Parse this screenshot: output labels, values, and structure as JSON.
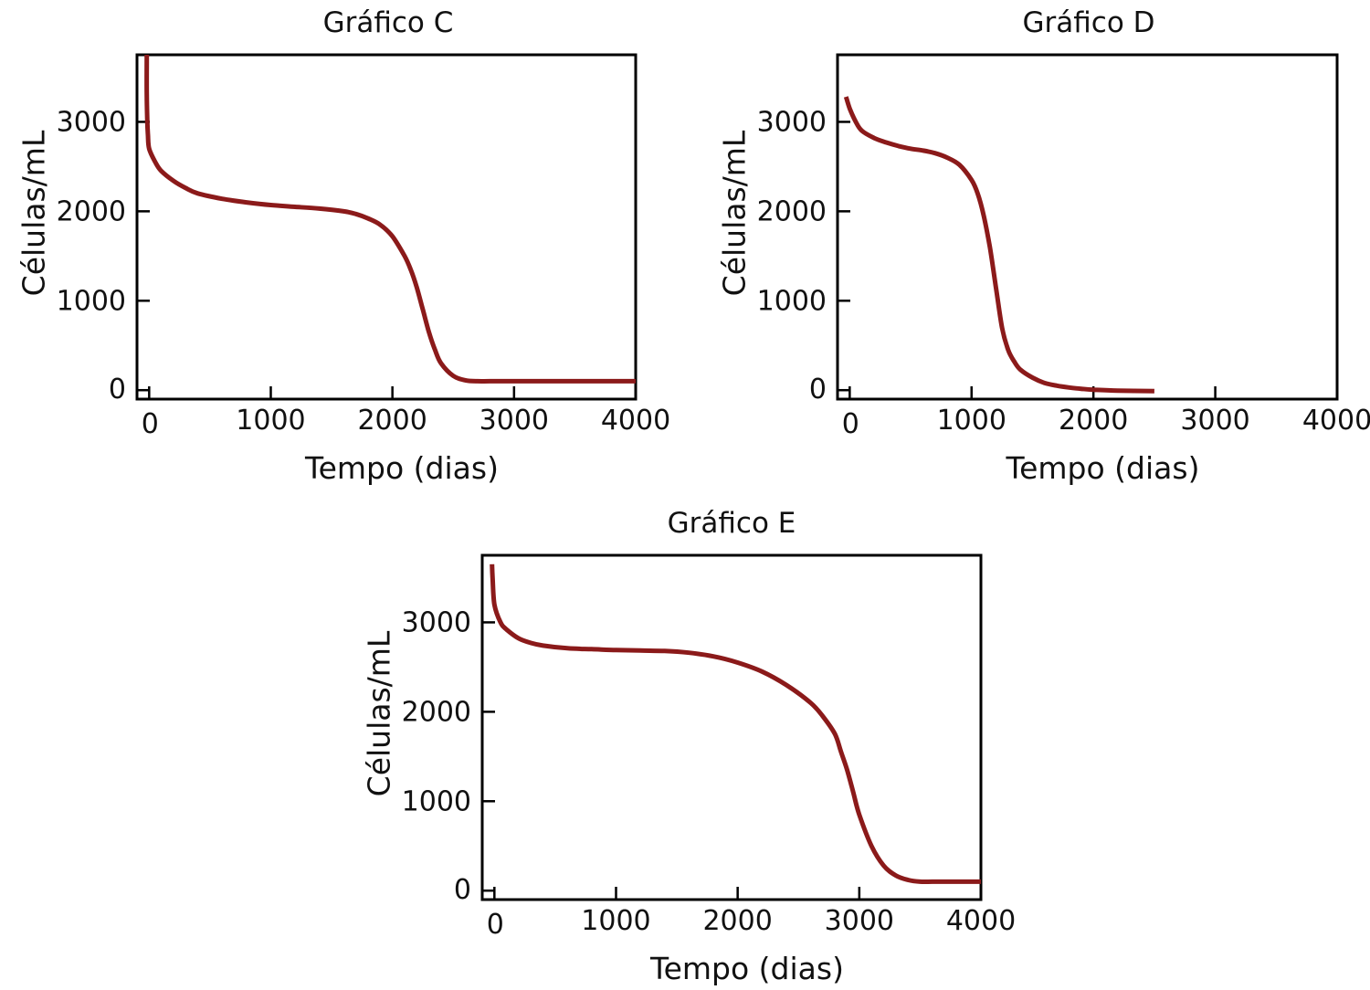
{
  "colors": {
    "curve": "#8b1a1a",
    "axes": "#000000",
    "background": "#ffffff"
  },
  "chart_data": [
    {
      "type": "line",
      "title": "Gráfico C",
      "xlabel": "Tempo (dias)",
      "ylabel": "Células/mL",
      "xlim": [
        -100,
        4000
      ],
      "ylim": [
        -100,
        3750
      ],
      "xticks": [
        0,
        1000,
        2000,
        3000,
        4000
      ],
      "yticks": [
        0,
        1000,
        2000,
        3000
      ],
      "grid": false,
      "series": [
        {
          "x": [
            -20,
            -20,
            -15,
            -10,
            0,
            50,
            100,
            200,
            300,
            400,
            600,
            800,
            1000,
            1200,
            1400,
            1600,
            1700,
            1800,
            1900,
            2000,
            2100,
            2150,
            2200,
            2250,
            2300,
            2350,
            2400,
            2500,
            2600,
            2700,
            2800,
            3000,
            3500,
            4000
          ],
          "y": [
            3750,
            3300,
            3000,
            2850,
            2700,
            2550,
            2450,
            2340,
            2260,
            2200,
            2140,
            2100,
            2070,
            2050,
            2030,
            2000,
            1970,
            1920,
            1850,
            1720,
            1500,
            1350,
            1150,
            900,
            650,
            450,
            300,
            160,
            110,
            100,
            100,
            100,
            100,
            100
          ]
        }
      ]
    },
    {
      "type": "line",
      "title": "Gráfico D",
      "xlabel": "Tempo (dias)",
      "ylabel": "Células/mL",
      "xlim": [
        -100,
        4000
      ],
      "ylim": [
        -100,
        3750
      ],
      "xticks": [
        0,
        1000,
        2000,
        3000,
        4000
      ],
      "yticks": [
        0,
        1000,
        2000,
        3000
      ],
      "grid": false,
      "series": [
        {
          "x": [
            -30,
            0,
            50,
            100,
            200,
            300,
            400,
            500,
            600,
            700,
            800,
            900,
            1000,
            1050,
            1100,
            1150,
            1200,
            1250,
            1300,
            1350,
            1400,
            1500,
            1600,
            1700,
            1800,
            1900,
            2000,
            2200,
            2500
          ],
          "y": [
            3280,
            3150,
            3000,
            2900,
            2820,
            2770,
            2730,
            2700,
            2680,
            2650,
            2600,
            2520,
            2350,
            2200,
            1950,
            1600,
            1150,
            700,
            450,
            320,
            230,
            140,
            80,
            50,
            30,
            15,
            5,
            -5,
            -10
          ]
        }
      ]
    },
    {
      "type": "line",
      "title": "Gráfico E",
      "xlabel": "Tempo (dias)",
      "ylabel": "Células/mL",
      "xlim": [
        -100,
        4000
      ],
      "ylim": [
        -100,
        3750
      ],
      "xticks": [
        0,
        1000,
        2000,
        3000,
        4000
      ],
      "yticks": [
        0,
        1000,
        2000,
        3000
      ],
      "grid": false,
      "series": [
        {
          "x": [
            -20,
            -15,
            0,
            50,
            100,
            200,
            300,
            400,
            600,
            800,
            1000,
            1200,
            1400,
            1600,
            1800,
            2000,
            2200,
            2400,
            2600,
            2700,
            2800,
            2850,
            2900,
            2950,
            3000,
            3100,
            3200,
            3300,
            3400,
            3500,
            3600,
            3700,
            3800,
            4000
          ],
          "y": [
            3650,
            3500,
            3200,
            3000,
            2920,
            2820,
            2770,
            2740,
            2710,
            2700,
            2690,
            2685,
            2680,
            2660,
            2620,
            2550,
            2450,
            2300,
            2100,
            1950,
            1750,
            1550,
            1350,
            1100,
            850,
            500,
            280,
            170,
            120,
            100,
            100,
            100,
            100,
            100
          ]
        }
      ]
    }
  ]
}
